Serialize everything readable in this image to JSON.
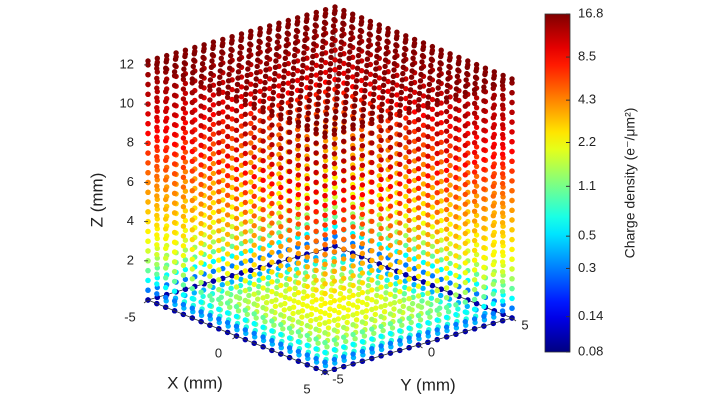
{
  "chart_data": {
    "type": "scatter3d",
    "xlabel": "X (mm)",
    "ylabel": "Y (mm)",
    "zlabel": "Z (mm)",
    "xlim": [
      -5,
      5
    ],
    "xticks": [
      -5,
      0,
      5
    ],
    "ylim": [
      -5,
      5
    ],
    "yticks": [
      -5,
      0,
      5
    ],
    "zlim": [
      0,
      12.2
    ],
    "zticks": [
      2,
      4,
      6,
      8,
      10,
      12
    ],
    "colormap": "jet",
    "color_scale": "log",
    "clim": [
      0.08,
      16.8
    ],
    "colorbar_ticks": [
      0.08,
      0.14,
      0.3,
      0.5,
      1.1,
      2.2,
      4.3,
      8.5,
      16.8
    ],
    "colorbar_label": "Charge density (e⁻/μm²)",
    "walls": {
      "z": [
        0,
        0.5,
        1,
        1.5,
        2,
        2.5,
        3,
        3.5,
        4,
        4.5,
        5,
        5.5,
        6,
        6.5,
        7,
        7.5,
        8,
        8.5,
        9,
        9.5,
        10,
        10.5,
        11,
        11.5,
        12
      ],
      "density": [
        0.1,
        0.3,
        0.6,
        1.0,
        1.4,
        1.8,
        2.1,
        2.4,
        2.7,
        3.0,
        3.4,
        3.8,
        4.3,
        5.0,
        5.8,
        6.6,
        7.5,
        8.5,
        9.5,
        10.5,
        11.5,
        12.5,
        13.5,
        14.5,
        15.5
      ]
    },
    "floor": {
      "distance": [
        0,
        0.5,
        1,
        1.5,
        2,
        2.5,
        3,
        3.5,
        4,
        4.5,
        5
      ],
      "density": [
        2.2,
        2.2,
        2.1,
        2.0,
        1.8,
        1.6,
        1.3,
        1.0,
        0.7,
        0.4,
        0.1
      ]
    },
    "top_density": 16.8
  }
}
